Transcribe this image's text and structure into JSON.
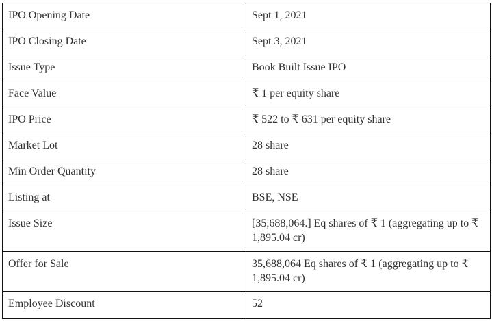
{
  "rows": [
    {
      "label": "IPO Opening Date",
      "value": "Sept 1, 2021"
    },
    {
      "label": "IPO Closing Date",
      "value": "Sept 3, 2021"
    },
    {
      "label": "Issue Type",
      "value": "Book Built Issue IPO"
    },
    {
      "label": "Face Value",
      "value": "₹ 1 per equity share"
    },
    {
      "label": "IPO Price",
      "value": "₹ 522 to ₹ 631 per equity share"
    },
    {
      "label": "Market Lot",
      "value": "28 share"
    },
    {
      "label": "Min Order Quantity",
      "value": "28 share"
    },
    {
      "label": "Listing at",
      "value": "BSE, NSE"
    },
    {
      "label": "Issue Size",
      "value": "[35,688,064.] Eq shares of ₹ 1 (aggregating up to ₹ 1,895.04 cr)"
    },
    {
      "label": "Offer for Sale",
      "value": "35,688,064 Eq shares of ₹ 1 (aggregating up to ₹ 1,895.04 cr)"
    },
    {
      "label": "Employee Discount",
      "value": "52"
    }
  ]
}
